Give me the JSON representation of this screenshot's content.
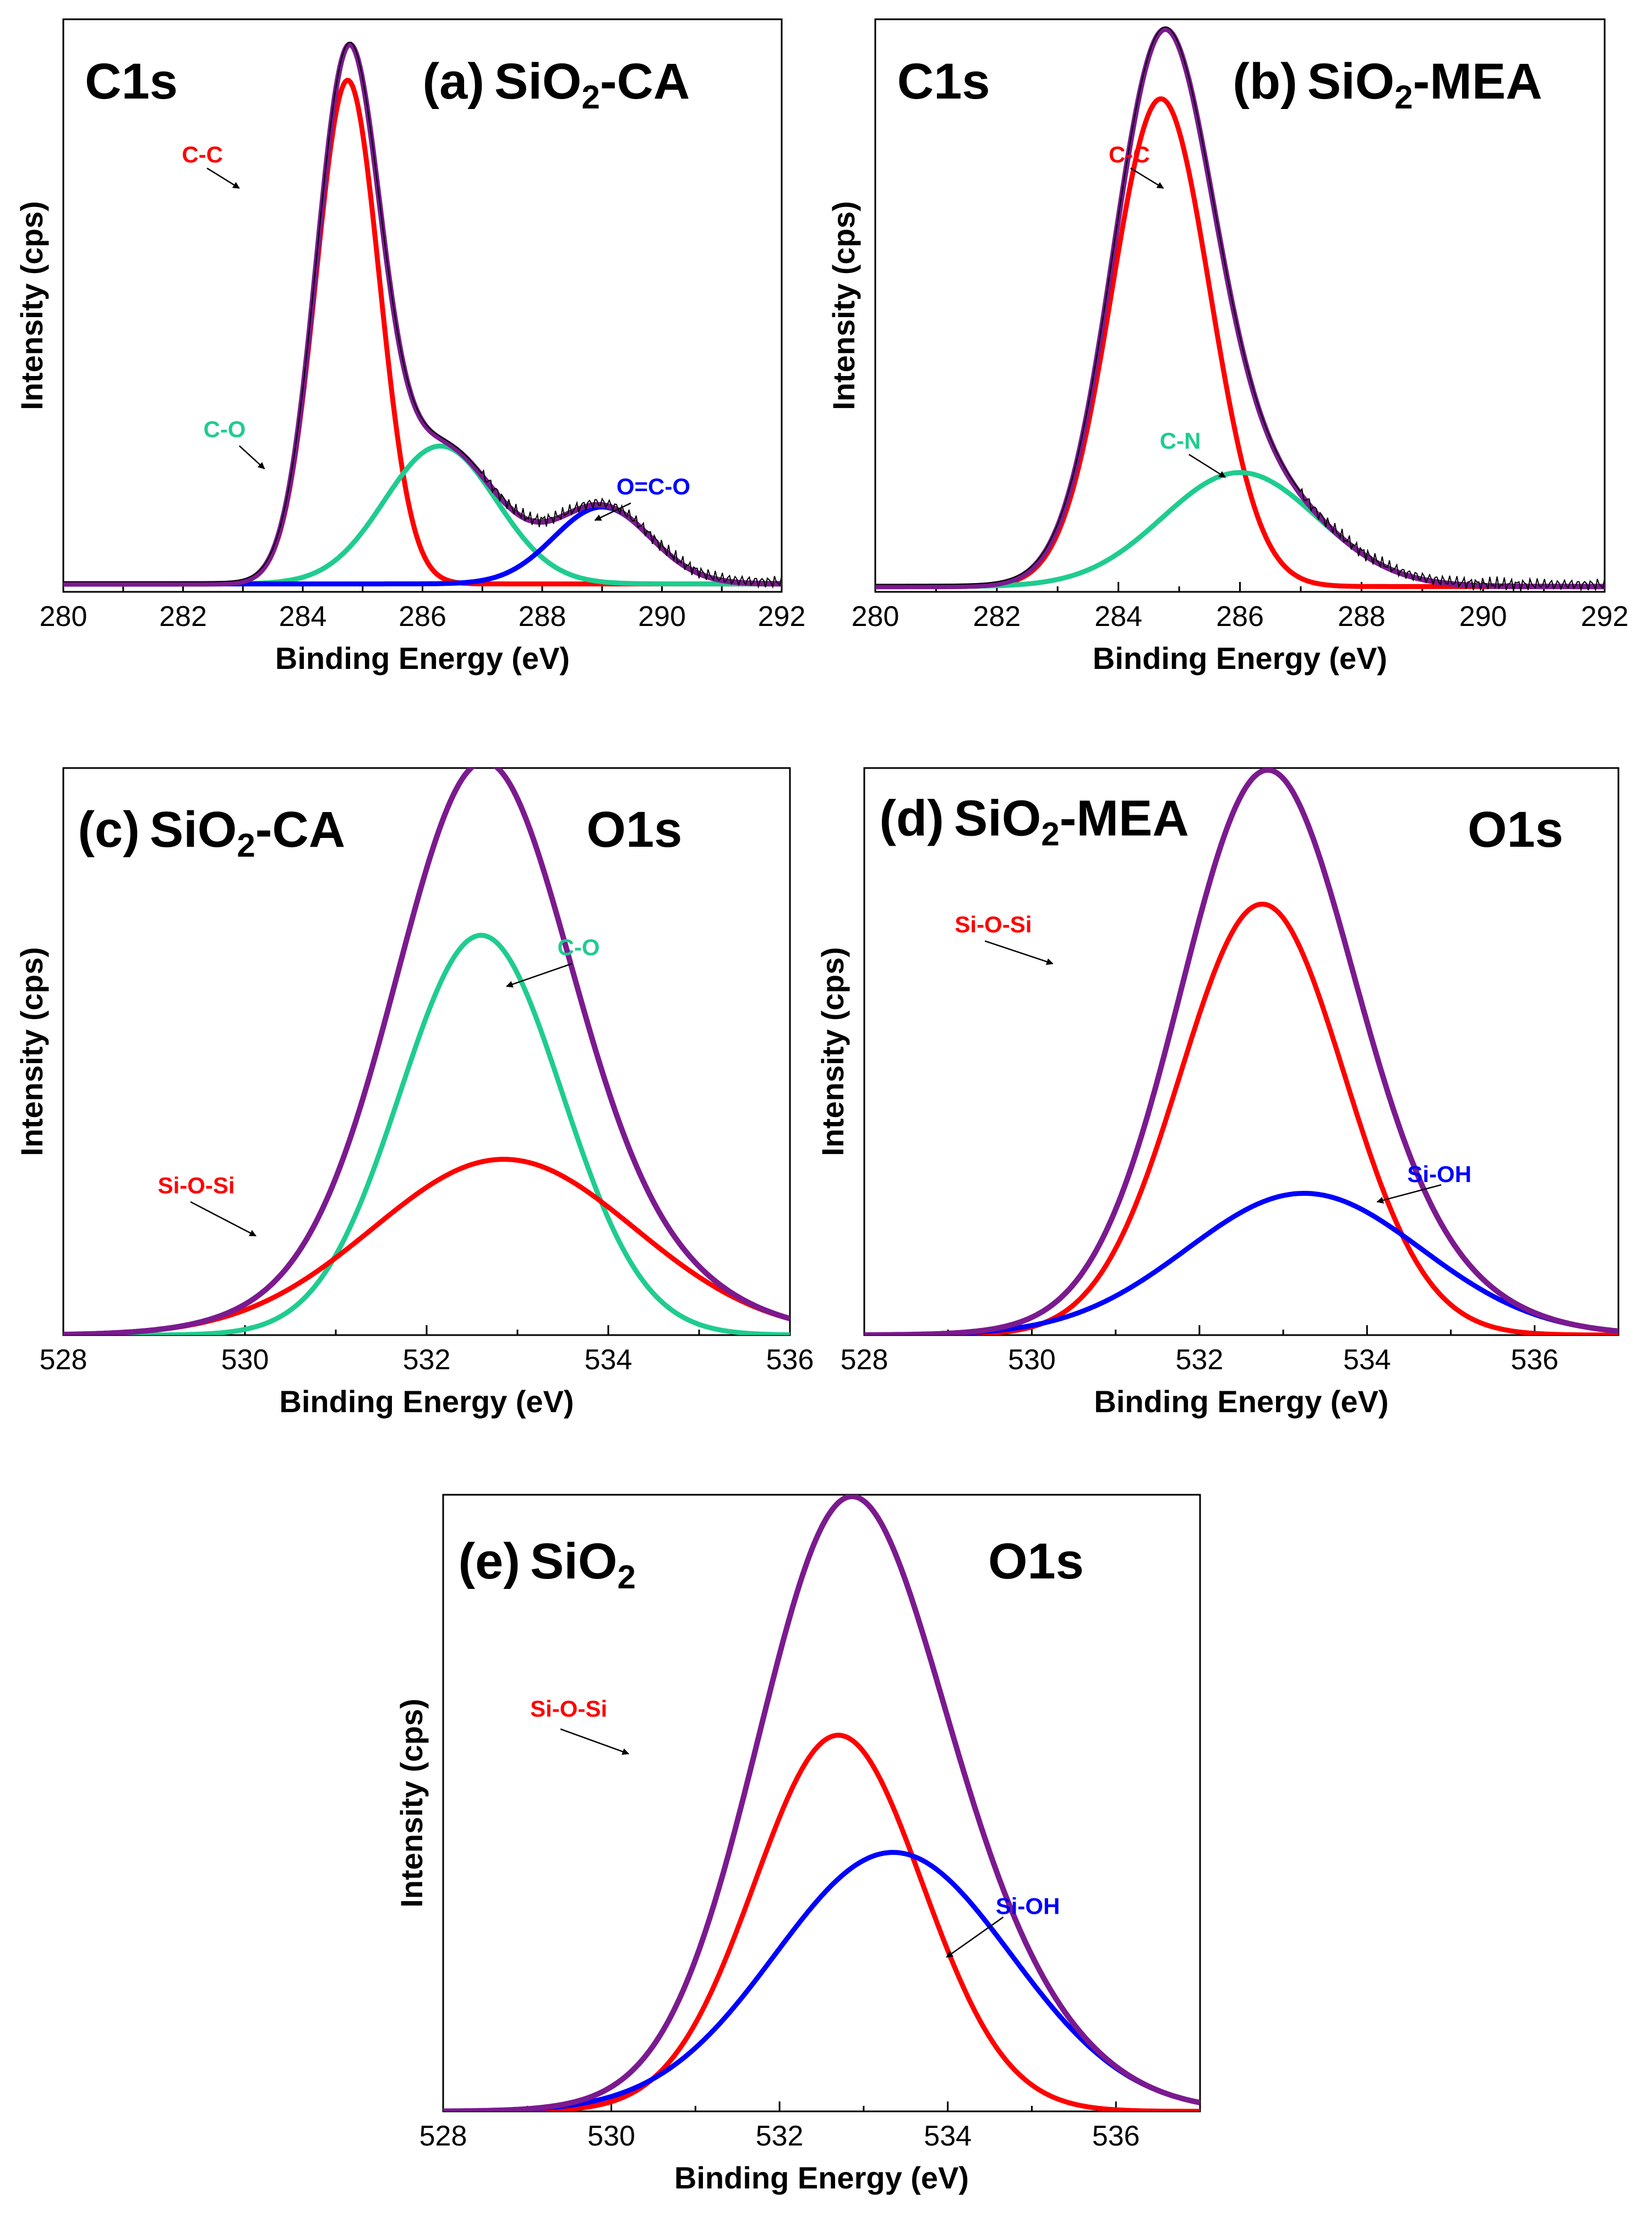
{
  "chart_data": [
    {
      "id": "a",
      "type": "line",
      "panel_label": "(a)",
      "title_main": "SiO",
      "title_sub": "2",
      "title_suffix": "-CA",
      "corner_label": "C1s",
      "xlabel": "Binding Energy (eV)",
      "ylabel": "Intensity (cps)",
      "xlim": [
        280,
        292
      ],
      "ylim": [
        0,
        1.08
      ],
      "xticks": [
        "280",
        "282",
        "284",
        "286",
        "288",
        "290",
        "292"
      ],
      "baseline": 0.015,
      "envelope": {
        "name": "Fitted envelope",
        "color": "#7b1a8f"
      },
      "raw": {
        "name": "Raw data",
        "color": "#000000"
      },
      "peaks": [
        {
          "name": "C-C",
          "center": 284.75,
          "height": 0.95,
          "fwhm": 1.25,
          "color": "#ff0000"
        },
        {
          "name": "C-O",
          "center": 286.3,
          "height": 0.26,
          "fwhm": 2.2,
          "color": "#1fcc8f"
        },
        {
          "name": "O=C-O",
          "center": 289.0,
          "height": 0.145,
          "fwhm": 1.9,
          "color": "#0000ff"
        }
      ],
      "annotations": [
        {
          "text": "C-C",
          "color": "#ff0000"
        },
        {
          "text": "C-O",
          "color": "#1fcc8f"
        },
        {
          "text": "O=C-O",
          "color": "#0000ff"
        }
      ]
    },
    {
      "id": "b",
      "type": "line",
      "panel_label": "(b)",
      "title_main": "SiO",
      "title_sub": "2",
      "title_suffix": "-MEA",
      "corner_label": "C1s",
      "xlabel": "Binding Energy (eV)",
      "ylabel": "Intensity (cps)",
      "xlim": [
        280,
        292
      ],
      "ylim": [
        0,
        1.08
      ],
      "xticks": [
        "280",
        "282",
        "284",
        "286",
        "288",
        "290",
        "292"
      ],
      "baseline": 0.01,
      "envelope": {
        "name": "Fitted envelope",
        "color": "#7b1a8f"
      },
      "raw": {
        "name": "Raw data",
        "color": "#000000"
      },
      "peaks": [
        {
          "name": "C-C",
          "center": 284.7,
          "height": 0.92,
          "fwhm": 1.9,
          "color": "#ff0000"
        },
        {
          "name": "C-N",
          "center": 286.0,
          "height": 0.215,
          "fwhm": 3.0,
          "color": "#1fcc8f"
        }
      ],
      "annotations": [
        {
          "text": "C-C",
          "color": "#ff0000"
        },
        {
          "text": "C-N",
          "color": "#1fcc8f"
        }
      ]
    },
    {
      "id": "c",
      "type": "line",
      "panel_label": "(c)",
      "title_main": "SiO",
      "title_sub": "2",
      "title_suffix": "-CA",
      "corner_label": "O1s",
      "xlabel": "Binding Energy (eV)",
      "ylabel": "Intensity (cps)",
      "xlim": [
        528,
        536
      ],
      "ylim": [
        0,
        1.0
      ],
      "xticks": [
        "528",
        "530",
        "532",
        "534",
        "536"
      ],
      "baseline": 0.0,
      "envelope": {
        "name": "Fitted envelope",
        "color": "#7b1a8f"
      },
      "peaks": [
        {
          "name": "C-O",
          "center": 532.6,
          "height": 0.705,
          "fwhm": 2.1,
          "color": "#1fcc8f"
        },
        {
          "name": "Si-O-Si",
          "center": 532.85,
          "height": 0.31,
          "fwhm": 3.4,
          "color": "#ff0000"
        }
      ],
      "annotations": [
        {
          "text": "C-O",
          "color": "#1fcc8f"
        },
        {
          "text": "Si-O-Si",
          "color": "#ff0000"
        }
      ]
    },
    {
      "id": "d",
      "type": "line",
      "panel_label": "(d)",
      "title_main": "SiO",
      "title_sub": "2",
      "title_suffix": "-MEA",
      "corner_label": "O1s",
      "xlabel": "Binding Energy (eV)",
      "ylabel": "Intensity (cps)",
      "xlim": [
        528,
        537
      ],
      "ylim": [
        0,
        1.0
      ],
      "xticks": [
        "528",
        "530",
        "532",
        "534",
        "536"
      ],
      "baseline": 0.0,
      "envelope": {
        "name": "Fitted envelope",
        "color": "#7b1a8f"
      },
      "peaks": [
        {
          "name": "Si-O-Si",
          "center": 532.75,
          "height": 0.76,
          "fwhm": 2.3,
          "color": "#ff0000"
        },
        {
          "name": "Si-OH",
          "center": 533.25,
          "height": 0.25,
          "fwhm": 3.3,
          "color": "#0000ff"
        }
      ],
      "annotations": [
        {
          "text": "Si-O-Si",
          "color": "#ff0000"
        },
        {
          "text": "Si-OH",
          "color": "#0000ff"
        }
      ]
    },
    {
      "id": "e",
      "type": "line",
      "panel_label": "(e)",
      "title_main": "SiO",
      "title_sub": "2",
      "title_suffix": "",
      "corner_label": "O1s",
      "xlabel": "Binding Energy (eV)",
      "ylabel": "Intensity (cps)",
      "xlim": [
        528,
        537
      ],
      "ylim": [
        0,
        1.0
      ],
      "xticks": [
        "528",
        "530",
        "532",
        "534",
        "536"
      ],
      "baseline": 0.0,
      "envelope": {
        "name": "Fitted envelope",
        "color": "#7b1a8f"
      },
      "peaks": [
        {
          "name": "Si-O-Si",
          "center": 532.7,
          "height": 0.61,
          "fwhm": 2.35,
          "color": "#ff0000"
        },
        {
          "name": "Si-OH",
          "center": 533.35,
          "height": 0.42,
          "fwhm": 3.3,
          "color": "#0000ff"
        }
      ],
      "annotations": [
        {
          "text": "Si-O-Si",
          "color": "#ff0000"
        },
        {
          "text": "Si-OH",
          "color": "#0000ff"
        }
      ]
    }
  ]
}
